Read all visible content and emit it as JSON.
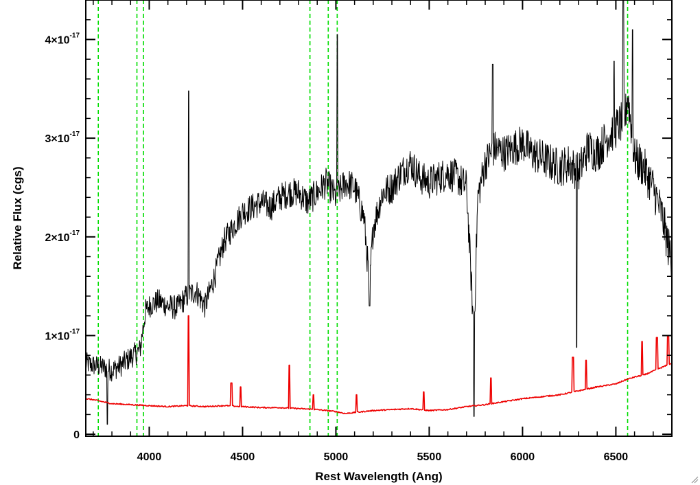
{
  "chart_data": {
    "type": "line",
    "title": "",
    "xlabel": "Rest Wavelength (Ang)",
    "ylabel": "Relative Flux (cgs)",
    "xlim": [
      3660,
      6800
    ],
    "ylim": [
      -2e-19,
      4.4e-17
    ],
    "x_ticks": [
      4000,
      4500,
      5000,
      5500,
      6000,
      6500
    ],
    "x_tick_labels": [
      "4000",
      "4500",
      "5000",
      "5500",
      "6000",
      "6500"
    ],
    "y_ticks": [
      0,
      1e-17,
      2e-17,
      3e-17,
      4e-17
    ],
    "y_tick_labels": [
      {
        "mantissa": "0",
        "exponent": ""
      },
      {
        "mantissa": "1×10",
        "exponent": "-17"
      },
      {
        "mantissa": "2×10",
        "exponent": "-17"
      },
      {
        "mantissa": "3×10",
        "exponent": "-17"
      },
      {
        "mantissa": "4×10",
        "exponent": "-17"
      }
    ],
    "vertical_lines": {
      "color": "#00dd00",
      "style": "dashed",
      "x": [
        3727,
        3934,
        3969,
        4861,
        4959,
        5007,
        6563
      ]
    },
    "series": [
      {
        "color": "#000000",
        "x": [
          3660,
          3700,
          3750,
          3800,
          3850,
          3900,
          3950,
          3980,
          4000,
          4050,
          4100,
          4150,
          4200,
          4250,
          4300,
          4350,
          4400,
          4450,
          4500,
          4550,
          4600,
          4650,
          4700,
          4750,
          4800,
          4850,
          4900,
          4950,
          5000,
          5050,
          5100,
          5150,
          5180,
          5200,
          5250,
          5300,
          5350,
          5400,
          5450,
          5500,
          5550,
          5600,
          5650,
          5700,
          5740,
          5760,
          5800,
          5850,
          5900,
          5950,
          6000,
          6050,
          6100,
          6150,
          6200,
          6250,
          6300,
          6350,
          6400,
          6450,
          6500,
          6550,
          6563,
          6600,
          6650,
          6700,
          6750,
          6780,
          6800
        ],
        "y": [
          7.2e-18,
          7e-18,
          6.8e-18,
          6.5e-18,
          7e-18,
          7.8e-18,
          8.5e-18,
          1.25e-17,
          1.3e-17,
          1.35e-17,
          1.3e-17,
          1.28e-17,
          1.4e-17,
          1.45e-17,
          1.3e-17,
          1.6e-17,
          1.95e-17,
          2.1e-17,
          2.25e-17,
          2.3e-17,
          2.35e-17,
          2.3e-17,
          2.4e-17,
          2.45e-17,
          2.45e-17,
          2.35e-17,
          2.45e-17,
          2.55e-17,
          2.4e-17,
          2.55e-17,
          2.5e-17,
          2.2e-17,
          1.5e-17,
          2.1e-17,
          2.45e-17,
          2.5e-17,
          2.65e-17,
          2.75e-17,
          2.6e-17,
          2.55e-17,
          2.6e-17,
          2.65e-17,
          2.6e-17,
          2.5e-17,
          1e-17,
          2.4e-17,
          2.75e-17,
          2.9e-17,
          2.85e-17,
          2.9e-17,
          2.95e-17,
          2.85e-17,
          2.8e-17,
          2.75e-17,
          2.7e-17,
          2.75e-17,
          2.65e-17,
          2.9e-17,
          2.85e-17,
          3e-17,
          3.1e-17,
          3.2e-17,
          3.45e-17,
          2.8e-17,
          2.7e-17,
          2.5e-17,
          2.2e-17,
          1.9e-17,
          1.8e-17
        ],
        "spikes": [
          {
            "x": 4211,
            "y": 3.48e-17
          },
          {
            "x": 5007,
            "y": 4.05e-17
          },
          {
            "x": 6540,
            "y": 4.4e-17
          },
          {
            "x": 6590,
            "y": 4.1e-17
          },
          {
            "x": 5740,
            "y": 1.8e-18
          },
          {
            "x": 5180,
            "y": 1.3e-17
          },
          {
            "x": 6290,
            "y": 8.8e-18
          },
          {
            "x": 3775,
            "y": 1e-18
          },
          {
            "x": 5840,
            "y": 3.75e-17
          },
          {
            "x": 6490,
            "y": 3.78e-17
          }
        ]
      },
      {
        "color": "#ee0000",
        "x": [
          3660,
          3700,
          3750,
          3800,
          3900,
          4000,
          4100,
          4200,
          4300,
          4400,
          4500,
          4600,
          4700,
          4800,
          4900,
          5000,
          5050,
          5100,
          5200,
          5300,
          5400,
          5500,
          5600,
          5700,
          5800,
          5900,
          6000,
          6100,
          6200,
          6300,
          6400,
          6500,
          6550,
          6600,
          6650,
          6700,
          6750,
          6800
        ],
        "y": [
          3.6e-18,
          3.5e-18,
          3.3e-18,
          3.1e-18,
          3e-18,
          2.9e-18,
          2.8e-18,
          2.9e-18,
          2.8e-18,
          2.9e-18,
          2.8e-18,
          2.7e-18,
          2.7e-18,
          2.6e-18,
          2.5e-18,
          2.3e-18,
          2.1e-18,
          2.2e-18,
          2.4e-18,
          2.5e-18,
          2.6e-18,
          2.4e-18,
          2.5e-18,
          2.8e-18,
          3e-18,
          3.3e-18,
          3.6e-18,
          3.8e-18,
          4e-18,
          4.4e-18,
          4.8e-18,
          5.1e-18,
          5.5e-18,
          5.8e-18,
          6e-18,
          6.4e-18,
          6.8e-18,
          7.2e-18
        ],
        "spikes": [
          {
            "x": 4211,
            "y": 1.2e-17
          },
          {
            "x": 4440,
            "y": 5.2e-18
          },
          {
            "x": 4490,
            "y": 4.8e-18
          },
          {
            "x": 4750,
            "y": 7e-18
          },
          {
            "x": 4880,
            "y": 4e-18
          },
          {
            "x": 5110,
            "y": 4e-18
          },
          {
            "x": 5470,
            "y": 4.3e-18
          },
          {
            "x": 5830,
            "y": 5.7e-18
          },
          {
            "x": 6270,
            "y": 7.8e-18
          },
          {
            "x": 6340,
            "y": 7.5e-18
          },
          {
            "x": 6640,
            "y": 9.4e-18
          },
          {
            "x": 6720,
            "y": 9.8e-18
          },
          {
            "x": 6780,
            "y": 1e-17
          }
        ]
      }
    ]
  }
}
